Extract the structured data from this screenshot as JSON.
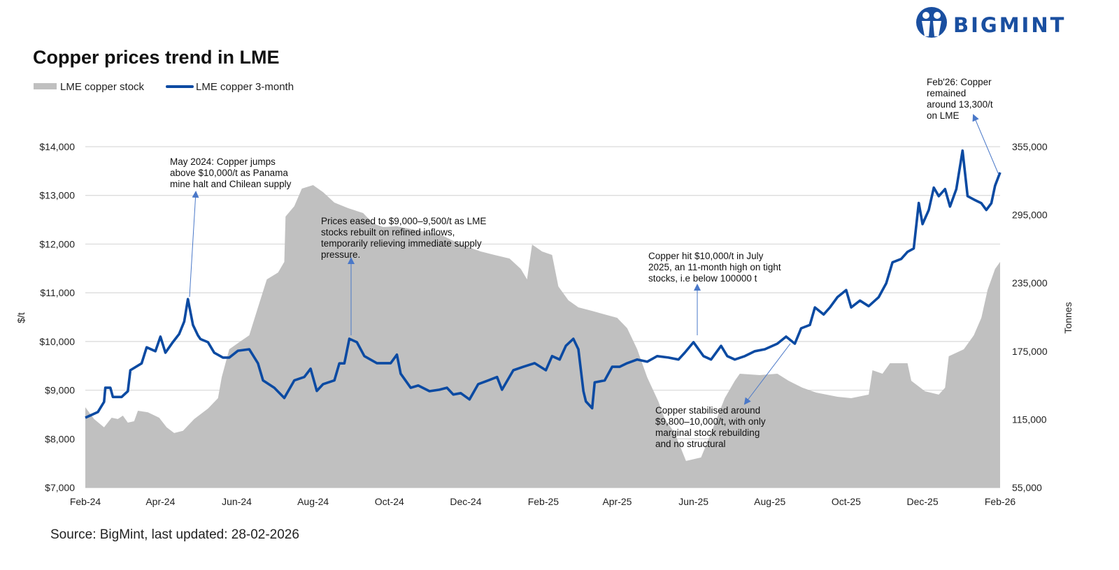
{
  "brand": {
    "logo_text": "BIGMINT",
    "color": "#1a4fa0"
  },
  "source": "Source: BigMint, last updated: 28-02-2026",
  "chart_data": {
    "type": "line+area",
    "title": "Copper prices trend in LME",
    "legend": {
      "placement": "top-left",
      "entries": [
        "LME copper stock",
        "LME copper 3-month"
      ]
    },
    "y_left": {
      "label": "$/t",
      "range": [
        7000,
        14000
      ],
      "ticks": [
        "$7,000",
        "$8,000",
        "$9,000",
        "$10,000",
        "$11,000",
        "$12,000",
        "$13,000",
        "$14,000"
      ],
      "tick_values": [
        7000,
        8000,
        9000,
        10000,
        11000,
        12000,
        13000,
        14000
      ]
    },
    "y_right": {
      "label": "Tonnes",
      "range": [
        55000,
        355000
      ],
      "ticks": [
        "55,000",
        "115,000",
        "175,000",
        "235,000",
        "295,000",
        "355,000"
      ],
      "tick_values": [
        55000,
        115000,
        175000,
        235000,
        295000,
        355000
      ]
    },
    "x_axis": {
      "range": [
        "2024-02-01",
        "2026-02-01"
      ],
      "ticks": [
        "Feb-24",
        "Apr-24",
        "Jun-24",
        "Aug-24",
        "Oct-24",
        "Dec-24",
        "Feb-25",
        "Apr-25",
        "Jun-25",
        "Aug-25",
        "Oct-25",
        "Dec-25",
        "Feb-26"
      ],
      "tick_dates": [
        "2024-02-01",
        "2024-04-01",
        "2024-06-01",
        "2024-08-01",
        "2024-10-01",
        "2024-12-01",
        "2025-02-01",
        "2025-04-01",
        "2025-06-01",
        "2025-08-01",
        "2025-10-01",
        "2025-12-01",
        "2026-02-01"
      ]
    },
    "grid": "horizontal",
    "colors": {
      "stock": "#c0c0c0",
      "price": "#0b4aa2",
      "arrow": "#4a78c8",
      "grid": "#d9d9d9"
    },
    "series": [
      {
        "name": "LME copper stock",
        "type": "area",
        "axis": "right",
        "points": [
          [
            "2024-02-01",
            125700
          ],
          [
            "2024-02-08",
            115300
          ],
          [
            "2024-02-16",
            108000
          ],
          [
            "2024-02-22",
            116500
          ],
          [
            "2024-02-27",
            115300
          ],
          [
            "2024-03-02",
            118300
          ],
          [
            "2024-03-06",
            112200
          ],
          [
            "2024-03-11",
            113400
          ],
          [
            "2024-03-14",
            122600
          ],
          [
            "2024-03-22",
            121300
          ],
          [
            "2024-03-31",
            116500
          ],
          [
            "2024-04-06",
            108000
          ],
          [
            "2024-04-12",
            103000
          ],
          [
            "2024-04-19",
            104900
          ],
          [
            "2024-04-28",
            115300
          ],
          [
            "2024-05-09",
            124500
          ],
          [
            "2024-05-17",
            133700
          ],
          [
            "2024-05-20",
            152100
          ],
          [
            "2024-05-26",
            176700
          ],
          [
            "2024-06-03",
            182900
          ],
          [
            "2024-06-11",
            189000
          ],
          [
            "2024-06-18",
            213600
          ],
          [
            "2024-06-25",
            238200
          ],
          [
            "2024-07-04",
            244300
          ],
          [
            "2024-07-09",
            253600
          ],
          [
            "2024-07-10",
            293500
          ],
          [
            "2024-07-17",
            302700
          ],
          [
            "2024-07-23",
            318100
          ],
          [
            "2024-08-01",
            321200
          ],
          [
            "2024-08-09",
            315000
          ],
          [
            "2024-08-18",
            305800
          ],
          [
            "2024-08-29",
            300900
          ],
          [
            "2024-09-10",
            296600
          ],
          [
            "2024-09-18",
            287400
          ],
          [
            "2024-09-26",
            284300
          ],
          [
            "2024-10-07",
            285000
          ],
          [
            "2024-10-24",
            281200
          ],
          [
            "2024-11-10",
            278100
          ],
          [
            "2024-11-27",
            268900
          ],
          [
            "2024-12-13",
            262800
          ],
          [
            "2024-12-24",
            259700
          ],
          [
            "2025-01-05",
            256600
          ],
          [
            "2025-01-14",
            247400
          ],
          [
            "2025-01-19",
            238200
          ],
          [
            "2025-01-23",
            268900
          ],
          [
            "2025-01-31",
            262800
          ],
          [
            "2025-02-08",
            259700
          ],
          [
            "2025-02-13",
            232000
          ],
          [
            "2025-02-21",
            219800
          ],
          [
            "2025-03-01",
            213600
          ],
          [
            "2025-03-12",
            210500
          ],
          [
            "2025-03-22",
            207400
          ],
          [
            "2025-04-01",
            204400
          ],
          [
            "2025-04-09",
            195200
          ],
          [
            "2025-04-17",
            176700
          ],
          [
            "2025-04-25",
            152100
          ],
          [
            "2025-05-04",
            130600
          ],
          [
            "2025-05-09",
            115300
          ],
          [
            "2025-05-17",
            103000
          ],
          [
            "2025-05-26",
            78400
          ],
          [
            "2025-06-07",
            81500
          ],
          [
            "2025-06-15",
            103000
          ],
          [
            "2025-06-26",
            133700
          ],
          [
            "2025-07-04",
            149000
          ],
          [
            "2025-07-08",
            155200
          ],
          [
            "2025-07-24",
            154000
          ],
          [
            "2025-08-07",
            155200
          ],
          [
            "2025-08-16",
            149000
          ],
          [
            "2025-08-27",
            142900
          ],
          [
            "2025-09-07",
            138600
          ],
          [
            "2025-09-24",
            134900
          ],
          [
            "2025-10-05",
            133700
          ],
          [
            "2025-10-19",
            136800
          ],
          [
            "2025-10-22",
            158300
          ],
          [
            "2025-10-30",
            155200
          ],
          [
            "2025-11-05",
            164400
          ],
          [
            "2025-11-19",
            164400
          ],
          [
            "2025-11-22",
            149000
          ],
          [
            "2025-12-03",
            139800
          ],
          [
            "2025-12-14",
            136800
          ],
          [
            "2025-12-19",
            142900
          ],
          [
            "2025-12-22",
            170600
          ],
          [
            "2026-01-03",
            176700
          ],
          [
            "2026-01-11",
            189000
          ],
          [
            "2026-01-17",
            204400
          ],
          [
            "2026-01-22",
            229000
          ],
          [
            "2026-01-28",
            247400
          ],
          [
            "2026-02-01",
            253600
          ]
        ]
      },
      {
        "name": "LME copper 3-month",
        "type": "line",
        "axis": "left",
        "points": [
          [
            "2024-02-01",
            8435
          ],
          [
            "2024-02-11",
            8550
          ],
          [
            "2024-02-16",
            8760
          ],
          [
            "2024-02-17",
            9050
          ],
          [
            "2024-02-21",
            9050
          ],
          [
            "2024-02-23",
            8860
          ],
          [
            "2024-03-01",
            8860
          ],
          [
            "2024-03-06",
            8980
          ],
          [
            "2024-03-08",
            9410
          ],
          [
            "2024-03-17",
            9550
          ],
          [
            "2024-03-21",
            9880
          ],
          [
            "2024-03-28",
            9800
          ],
          [
            "2024-04-01",
            10100
          ],
          [
            "2024-04-05",
            9770
          ],
          [
            "2024-04-11",
            9990
          ],
          [
            "2024-04-16",
            10155
          ],
          [
            "2024-04-20",
            10410
          ],
          [
            "2024-04-23",
            10870
          ],
          [
            "2024-04-27",
            10340
          ],
          [
            "2024-05-01",
            10125
          ],
          [
            "2024-05-03",
            10050
          ],
          [
            "2024-05-09",
            9985
          ],
          [
            "2024-05-14",
            9770
          ],
          [
            "2024-05-21",
            9670
          ],
          [
            "2024-05-26",
            9670
          ],
          [
            "2024-06-02",
            9810
          ],
          [
            "2024-06-11",
            9840
          ],
          [
            "2024-06-18",
            9550
          ],
          [
            "2024-06-22",
            9200
          ],
          [
            "2024-07-01",
            9050
          ],
          [
            "2024-07-09",
            8840
          ],
          [
            "2024-07-17",
            9200
          ],
          [
            "2024-07-25",
            9270
          ],
          [
            "2024-07-30",
            9440
          ],
          [
            "2024-08-04",
            8985
          ],
          [
            "2024-08-09",
            9125
          ],
          [
            "2024-08-18",
            9200
          ],
          [
            "2024-08-22",
            9550
          ],
          [
            "2024-08-26",
            9550
          ],
          [
            "2024-08-30",
            10055
          ],
          [
            "2024-09-05",
            9985
          ],
          [
            "2024-09-11",
            9700
          ],
          [
            "2024-09-21",
            9555
          ],
          [
            "2024-10-02",
            9555
          ],
          [
            "2024-10-07",
            9730
          ],
          [
            "2024-10-10",
            9340
          ],
          [
            "2024-10-18",
            9050
          ],
          [
            "2024-10-24",
            9095
          ],
          [
            "2024-11-02",
            8980
          ],
          [
            "2024-11-10",
            9010
          ],
          [
            "2024-11-16",
            9050
          ],
          [
            "2024-11-21",
            8910
          ],
          [
            "2024-11-27",
            8940
          ],
          [
            "2024-12-04",
            8810
          ],
          [
            "2024-12-11",
            9125
          ],
          [
            "2024-12-19",
            9200
          ],
          [
            "2024-12-26",
            9270
          ],
          [
            "2024-12-30",
            9010
          ],
          [
            "2025-01-08",
            9410
          ],
          [
            "2025-01-16",
            9480
          ],
          [
            "2025-01-25",
            9555
          ],
          [
            "2025-02-03",
            9410
          ],
          [
            "2025-02-08",
            9700
          ],
          [
            "2025-02-14",
            9630
          ],
          [
            "2025-02-19",
            9910
          ],
          [
            "2025-02-25",
            10055
          ],
          [
            "2025-03-01",
            9840
          ],
          [
            "2025-03-05",
            8980
          ],
          [
            "2025-03-07",
            8770
          ],
          [
            "2025-03-12",
            8630
          ],
          [
            "2025-03-14",
            9160
          ],
          [
            "2025-03-22",
            9200
          ],
          [
            "2025-03-28",
            9480
          ],
          [
            "2025-04-03",
            9480
          ],
          [
            "2025-04-09",
            9555
          ],
          [
            "2025-04-17",
            9630
          ],
          [
            "2025-04-25",
            9585
          ],
          [
            "2025-05-03",
            9700
          ],
          [
            "2025-05-12",
            9670
          ],
          [
            "2025-05-20",
            9630
          ],
          [
            "2025-05-25",
            9770
          ],
          [
            "2025-06-01",
            9985
          ],
          [
            "2025-06-09",
            9700
          ],
          [
            "2025-06-15",
            9630
          ],
          [
            "2025-06-23",
            9910
          ],
          [
            "2025-06-28",
            9700
          ],
          [
            "2025-07-04",
            9630
          ],
          [
            "2025-07-12",
            9700
          ],
          [
            "2025-07-20",
            9800
          ],
          [
            "2025-07-28",
            9840
          ],
          [
            "2025-08-07",
            9955
          ],
          [
            "2025-08-14",
            10100
          ],
          [
            "2025-08-21",
            9955
          ],
          [
            "2025-08-26",
            10270
          ],
          [
            "2025-09-02",
            10340
          ],
          [
            "2025-09-06",
            10700
          ],
          [
            "2025-09-13",
            10555
          ],
          [
            "2025-09-18",
            10700
          ],
          [
            "2025-09-24",
            10910
          ],
          [
            "2025-10-01",
            11055
          ],
          [
            "2025-10-05",
            10700
          ],
          [
            "2025-10-12",
            10840
          ],
          [
            "2025-10-19",
            10725
          ],
          [
            "2025-10-27",
            10910
          ],
          [
            "2025-11-02",
            11195
          ],
          [
            "2025-11-07",
            11625
          ],
          [
            "2025-11-14",
            11695
          ],
          [
            "2025-11-19",
            11840
          ],
          [
            "2025-11-24",
            11910
          ],
          [
            "2025-11-28",
            12845
          ],
          [
            "2025-12-01",
            12410
          ],
          [
            "2025-12-06",
            12700
          ],
          [
            "2025-12-10",
            13160
          ],
          [
            "2025-12-14",
            12985
          ],
          [
            "2025-12-19",
            13130
          ],
          [
            "2025-12-23",
            12770
          ],
          [
            "2025-12-28",
            13130
          ],
          [
            "2026-01-02",
            13920
          ],
          [
            "2026-01-06",
            12985
          ],
          [
            "2026-01-11",
            12915
          ],
          [
            "2026-01-17",
            12840
          ],
          [
            "2026-01-21",
            12700
          ],
          [
            "2026-01-25",
            12840
          ],
          [
            "2026-01-28",
            13200
          ],
          [
            "2026-02-01",
            13470
          ]
        ]
      }
    ],
    "annotations": [
      {
        "lines": [
          "May 2024: Copper jumps",
          "above $10,000/t as Panama",
          "mine halt and Chilean supply"
        ],
        "anchor": [
          "2024-04-23",
          10870
        ]
      },
      {
        "lines": [
          "Prices eased to $9,000–9,500/t as LME",
          "stocks rebuilt on refined inflows,",
          "temporarily relieving immediate supply",
          "pressure."
        ],
        "anchor": [
          "2024-08-30",
          10055
        ]
      },
      {
        "lines": [
          "Copper hit $10,000/t in July",
          "2025, an 11-month high on tight",
          "stocks, i.e below 100000 t"
        ],
        "anchor": [
          "2025-06-01",
          9985
        ]
      },
      {
        "lines": [
          "Copper stabilised around",
          "$9,800–10,000/t, with only",
          "marginal stock rebuilding",
          "and no structural"
        ],
        "anchor": [
          "2025-08-14",
          10100
        ]
      },
      {
        "lines": [
          "Feb'26: Copper",
          "remained",
          "around 13,300/t",
          "on LME"
        ],
        "anchor": [
          "2026-02-01",
          13470
        ]
      }
    ]
  }
}
